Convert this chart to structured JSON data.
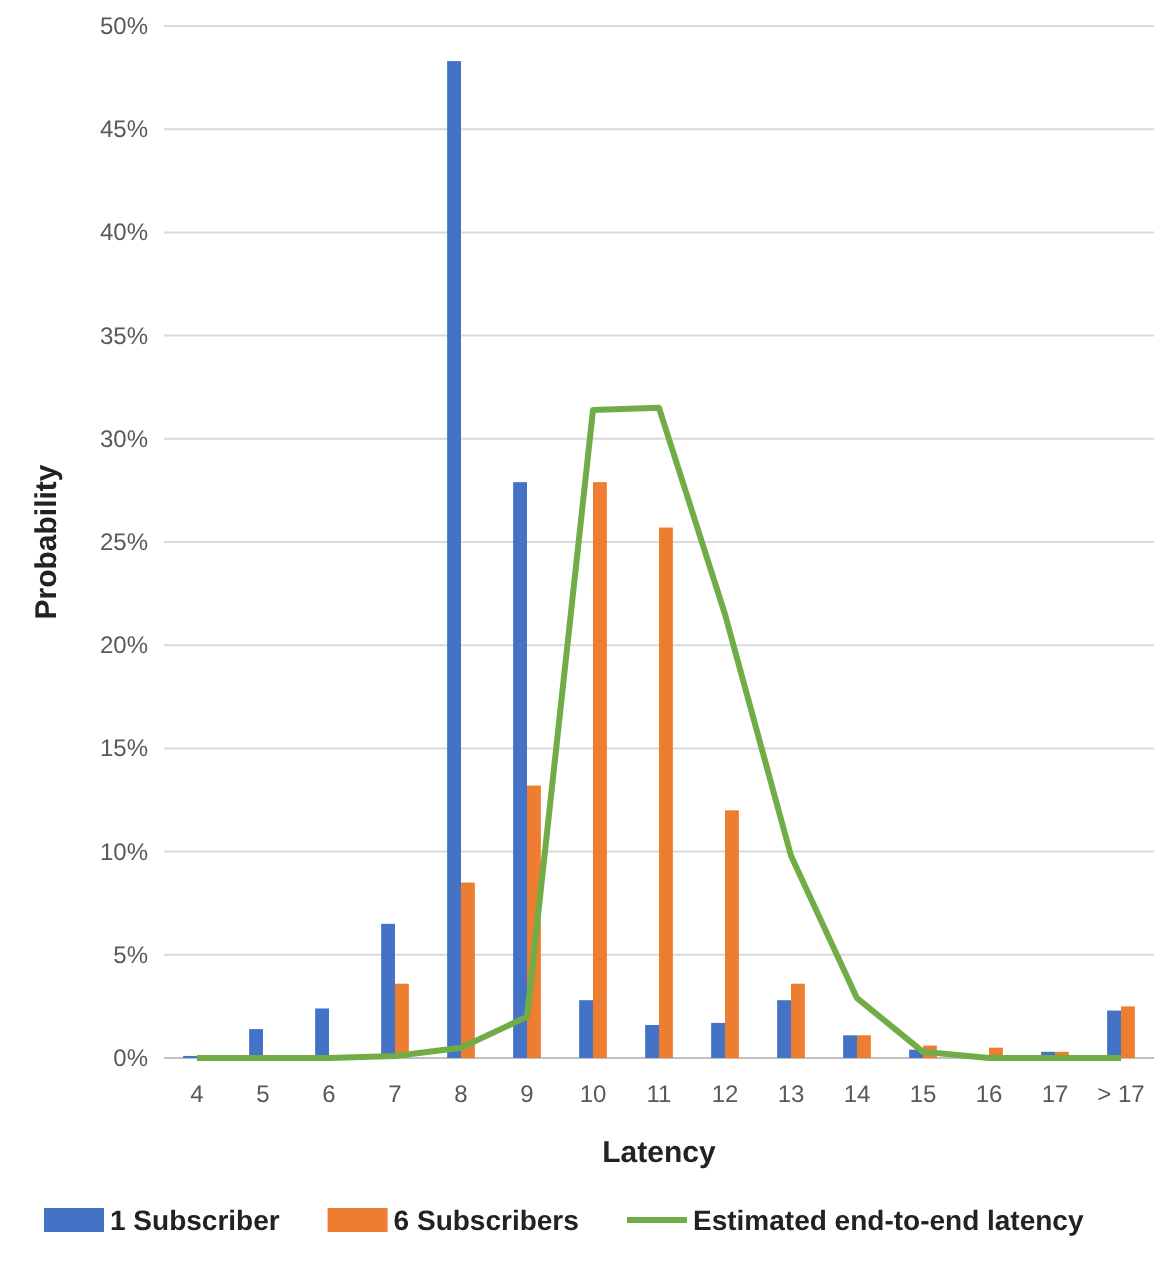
{
  "chart_data": {
    "type": "bar",
    "xlabel": "Latency",
    "ylabel": "Probability",
    "categories": [
      "4",
      "5",
      "6",
      "7",
      "8",
      "9",
      "10",
      "11",
      "12",
      "13",
      "14",
      "15",
      "16",
      "17",
      "> 17"
    ],
    "series": [
      {
        "name": "1 Subscriber",
        "color": "#4472c4",
        "values": [
          0.1,
          1.4,
          2.4,
          6.5,
          48.3,
          27.9,
          2.8,
          1.6,
          1.7,
          2.8,
          1.1,
          0.4,
          0,
          0.3,
          2.3
        ]
      },
      {
        "name": "6 Subscribers",
        "color": "#ed7d31",
        "values": [
          0,
          0,
          0,
          3.6,
          8.5,
          13.2,
          27.9,
          25.7,
          12.0,
          3.6,
          1.1,
          0.6,
          0.5,
          0.3,
          2.5
        ]
      },
      {
        "name": "Estimated end-to-end latency",
        "type": "line",
        "color": "#70ad47",
        "values": [
          0,
          0,
          0,
          0.1,
          0.5,
          2.0,
          31.4,
          31.5,
          21.5,
          9.8,
          2.9,
          0.3,
          0,
          0,
          0
        ]
      }
    ],
    "ylim": [
      0,
      50
    ],
    "yticks": [
      {
        "value": 0,
        "label": "0%"
      },
      {
        "value": 5,
        "label": "5%"
      },
      {
        "value": 10,
        "label": "10%"
      },
      {
        "value": 15,
        "label": "15%"
      },
      {
        "value": 20,
        "label": "20%"
      },
      {
        "value": 25,
        "label": "25%"
      },
      {
        "value": 30,
        "label": "30%"
      },
      {
        "value": 35,
        "label": "35%"
      },
      {
        "value": 40,
        "label": "40%"
      },
      {
        "value": 45,
        "label": "45%"
      },
      {
        "value": 50,
        "label": "50%"
      }
    ],
    "grid": "y",
    "legend": "bottom"
  }
}
